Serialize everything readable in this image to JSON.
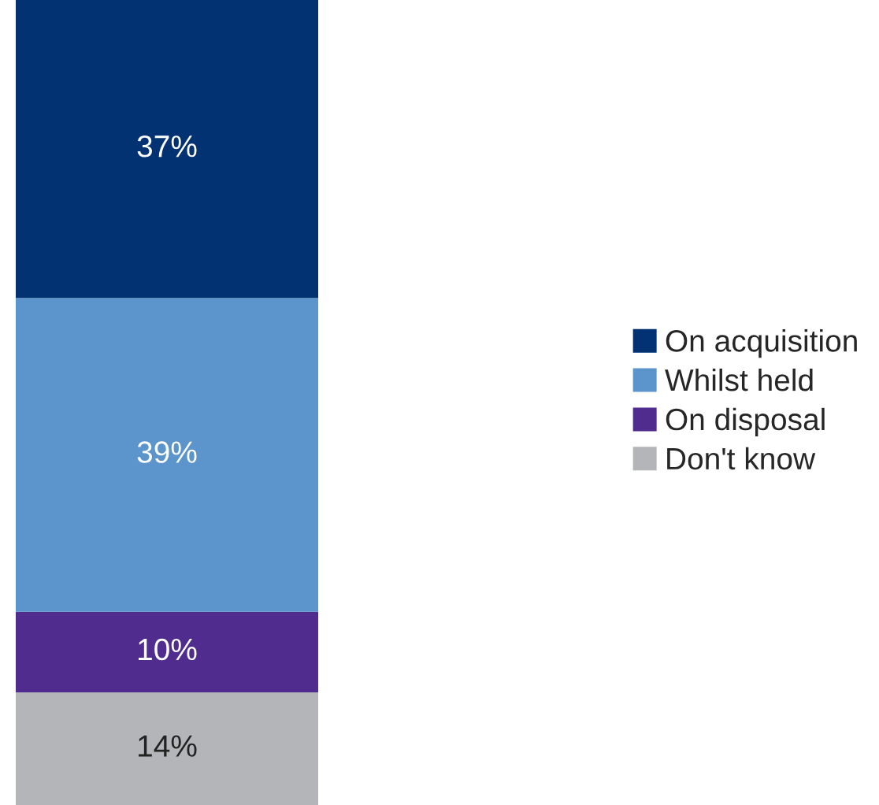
{
  "chart_data": {
    "type": "bar",
    "stacked": true,
    "categories": [
      null
    ],
    "legend": "right",
    "series": [
      {
        "name": "Don't know",
        "color": "#b3b5b8",
        "values": [
          14
        ],
        "value_labels": [
          "14%"
        ]
      },
      {
        "name": "On disposal",
        "color": "#4f2c8e",
        "values": [
          10
        ],
        "value_labels": [
          "10%"
        ]
      },
      {
        "name": "Whilst held",
        "color": "#5b95cb",
        "values": [
          39
        ],
        "value_labels": [
          "39%"
        ]
      },
      {
        "name": "On acquisition",
        "color": "#023272",
        "values": [
          37
        ],
        "value_labels": [
          "37%"
        ]
      }
    ]
  }
}
